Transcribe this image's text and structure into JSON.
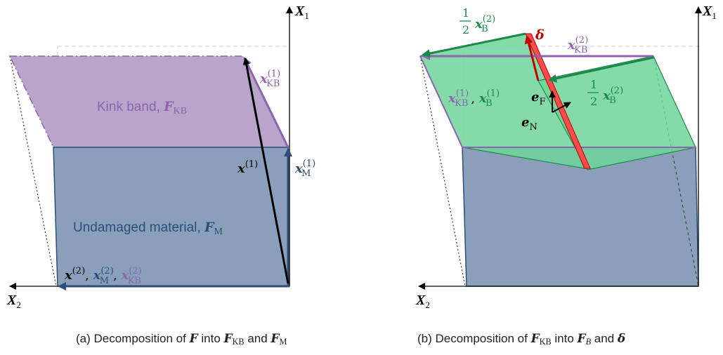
{
  "panel_a": {
    "axis_x1": "X",
    "axis_x1_sub": "1",
    "axis_x2": "X",
    "axis_x2_sub": "2",
    "kink_band_label": "Kink band, ",
    "kink_band_sym": "F",
    "kink_band_sub": "KB",
    "undamaged_label": "Undamaged material, ",
    "undamaged_sym": "F",
    "undamaged_sub": "M",
    "vec_x1": "x",
    "vec_x1_sup": "(1)",
    "vec_xkb1": "x",
    "vec_xkb1_sub": "KB",
    "vec_xkb1_sup": "(1)",
    "vec_xm1": "x",
    "vec_xm1_sub": "M",
    "vec_xm1_sup": "(1)",
    "vec_x2": "x",
    "vec_x2_sup": "(2)",
    "vec_xm2_sub": "M",
    "vec_xkb2_sub": "KB",
    "caption_prefix": "(a) Decomposition of ",
    "caption_F": "F",
    "caption_into": " into ",
    "caption_FKB": "F",
    "caption_FKB_sub": "KB",
    "caption_and": " and ",
    "caption_FM": "F",
    "caption_FM_sub": "M"
  },
  "panel_b": {
    "axis_x1": "X",
    "axis_x1_sub": "1",
    "axis_x2": "X",
    "axis_x2_sub": "2",
    "half": "1",
    "half_den": "2",
    "vec_xb": "x",
    "vec_xb_sub": "B",
    "vec_xb_sup": "(2)",
    "delta": "δ",
    "vec_xkb2": "x",
    "vec_xkb2_sub": "KB",
    "vec_xkb2_sup": "(2)",
    "vec_xkb1": "x",
    "vec_xkb1_sub": "KB",
    "vec_xkb1_sup": "(1)",
    "vec_xb1_sub": "B",
    "vec_xb1_sup": "(1)",
    "e_f": "e",
    "e_f_sub": "F",
    "e_n": "e",
    "e_n_sub": "N",
    "caption_prefix": "(b) Decomposition of ",
    "caption_FKB": "F",
    "caption_FKB_sub": "KB",
    "caption_into": " into ",
    "caption_FB": "F",
    "caption_FB_sub": "B",
    "caption_and": " and ",
    "caption_delta": "δ"
  },
  "colors": {
    "kink_band_fill": "#b9a4cc",
    "kink_band_edge": "#8c64b0",
    "undamaged_fill": "#8aa0ba",
    "undamaged_edge": "#2e4d7b",
    "band_green": "#6fd59a",
    "arrow_green": "#1b8a49",
    "delta_red": "#c00000"
  }
}
